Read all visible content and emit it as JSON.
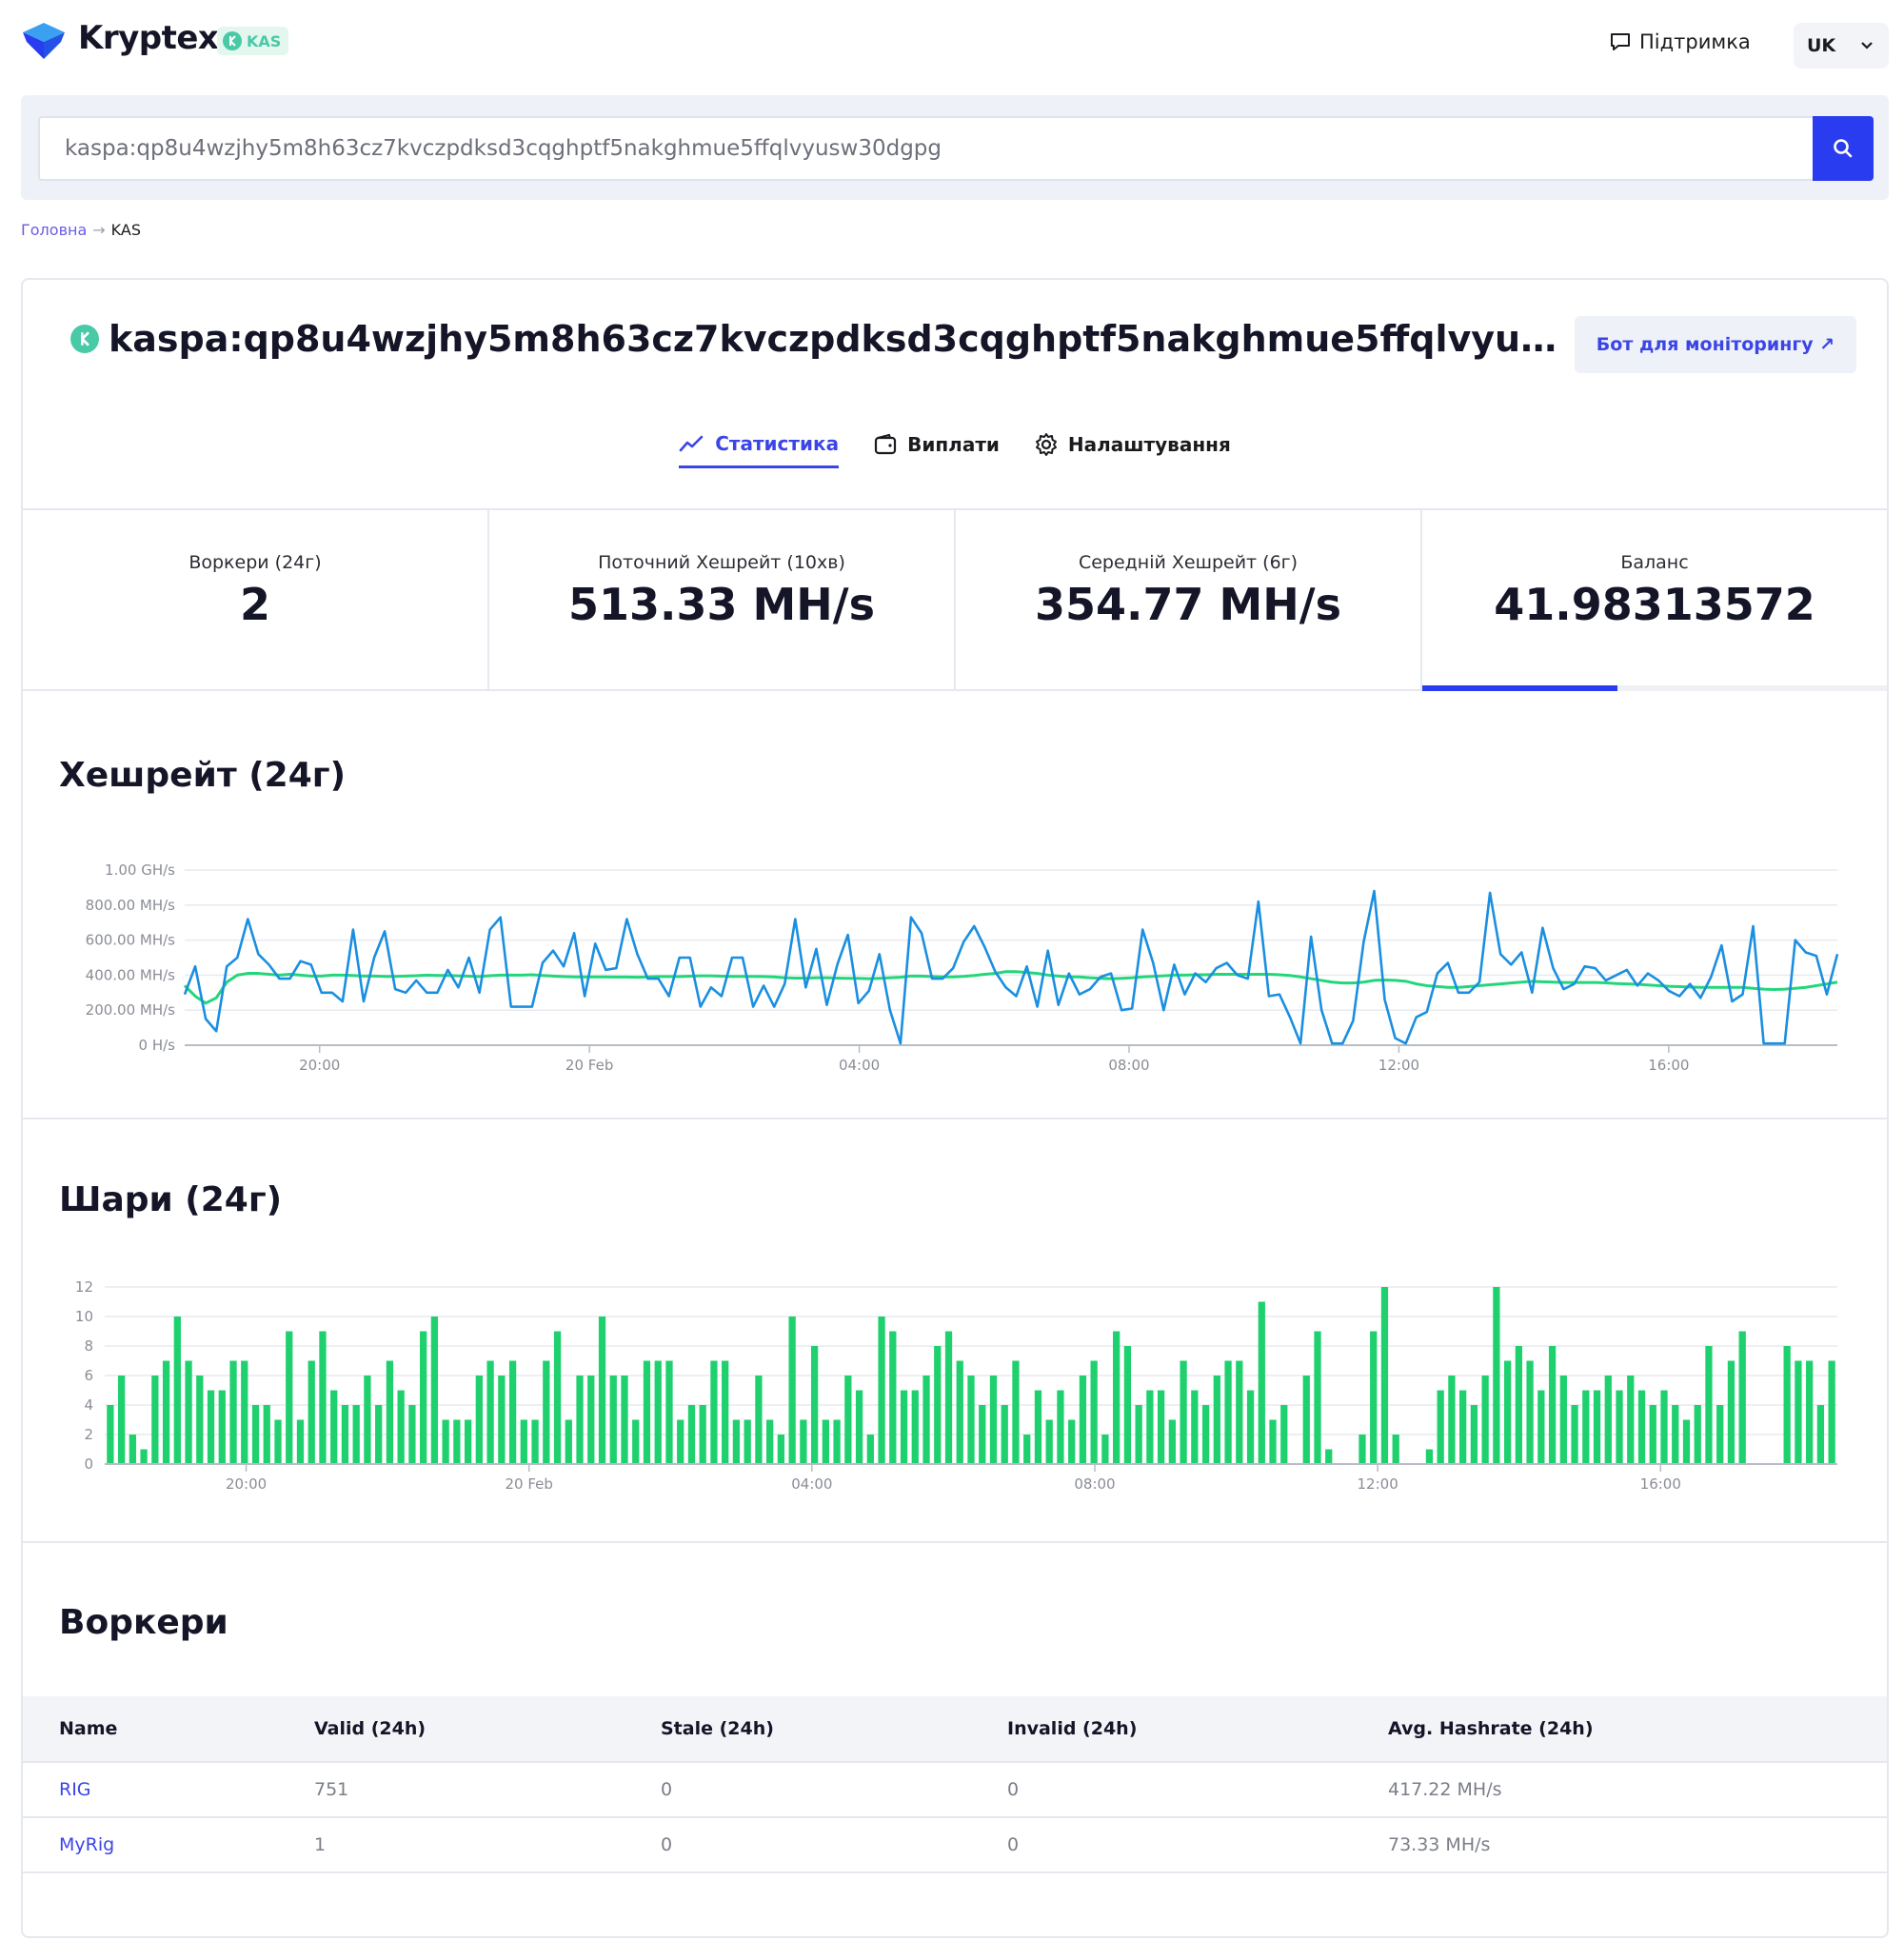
{
  "header": {
    "brand": "Kryptex",
    "coin_badge": "KAS",
    "support_label": "Підтримка",
    "language": "UK"
  },
  "search": {
    "value": "kaspa:qp8u4wzjhy5m8h63cz7kvczpdksd3cqghptf5nakghmue5ffqlvyusw30dgpg"
  },
  "breadcrumb": {
    "home": "Головна",
    "current": "KAS"
  },
  "account": {
    "address": "kaspa:qp8u4wzjhy5m8h63cz7kvczpdksd3cqghptf5nakghmue5ffqlvyusw30dgpg",
    "bot_button": "Бот для моніторингу ↗"
  },
  "tabs": [
    {
      "label": "Статистика",
      "icon": "chart-line-icon",
      "active": true
    },
    {
      "label": "Виплати",
      "icon": "wallet-icon",
      "active": false
    },
    {
      "label": "Налаштування",
      "icon": "gear-icon",
      "active": false
    }
  ],
  "stats": [
    {
      "label": "Воркери (24г)",
      "value": "2"
    },
    {
      "label": "Поточний Хешрейт (10хв)",
      "value": "513.33 MH/s"
    },
    {
      "label": "Середній Хешрейт (6г)",
      "value": "354.77 MH/s"
    },
    {
      "label": "Баланс",
      "value": "41.98313572",
      "progress_fraction": 0.42
    }
  ],
  "colors": {
    "accent": "#2a3cf0",
    "link": "#3b45e6",
    "hashrate_line": "#1a8fe0",
    "average_line": "#22d67a",
    "shares_bar": "#1fd16e",
    "coin": "#49c9a6"
  },
  "hashrate_section": {
    "title": "Хешрейт (24г)"
  },
  "shares_section": {
    "title": "Шари (24г)"
  },
  "chart_data": [
    {
      "type": "line",
      "title": "Хешрейт (24г)",
      "y_tick_labels": [
        "0 H/s",
        "200.00 MH/s",
        "400.00 MH/s",
        "600.00 MH/s",
        "800.00 MH/s",
        "1.00 GH/s"
      ],
      "ylim": [
        0,
        1000
      ],
      "y_unit": "MH/s",
      "x_tick_labels": [
        "20:00",
        "20 Feb",
        "04:00",
        "08:00",
        "12:00",
        "16:00"
      ],
      "x_tick_hours": [
        20,
        24,
        28,
        32,
        36,
        40
      ],
      "x_range_hours": [
        18,
        42.5
      ],
      "grid": true,
      "series": [
        {
          "values": [
            290,
            450,
            150,
            80,
            450,
            500,
            720,
            520,
            460,
            380,
            380,
            480,
            460,
            300,
            300,
            250,
            660,
            250,
            500,
            650,
            320,
            300,
            370,
            300,
            300,
            430,
            330,
            500,
            300,
            660,
            730,
            220,
            220,
            220,
            470,
            540,
            450,
            640,
            280,
            580,
            430,
            440,
            720,
            520,
            380,
            380,
            280,
            500,
            500,
            220,
            330,
            280,
            500,
            500,
            220,
            340,
            220,
            350,
            720,
            330,
            550,
            230,
            460,
            630,
            240,
            310,
            520,
            200,
            10,
            730,
            640,
            380,
            380,
            440,
            590,
            680,
            560,
            420,
            330,
            280,
            450,
            220,
            540,
            230,
            410,
            290,
            320,
            390,
            410,
            200,
            210,
            660,
            470,
            200,
            460,
            290,
            410,
            360,
            440,
            470,
            400,
            380,
            820,
            280,
            290,
            160,
            10,
            620,
            200,
            10,
            10,
            140,
            590,
            880,
            260,
            40,
            10,
            160,
            190,
            410,
            470,
            300,
            300,
            360,
            870,
            520,
            460,
            530,
            300,
            670,
            440,
            320,
            350,
            450,
            440,
            370,
            400,
            430,
            340,
            410,
            370,
            310,
            280,
            350,
            270,
            390,
            570,
            250,
            290,
            680,
            10,
            10,
            10,
            600,
            530,
            510,
            290,
            520
          ],
          "average_values": [
            340,
            280,
            240,
            270,
            360,
            400,
            410,
            410,
            405,
            400,
            405,
            400,
            395,
            395,
            400,
            400,
            398,
            395,
            395,
            393,
            393,
            395,
            397,
            400,
            398,
            398,
            396,
            394,
            392,
            397,
            400,
            400,
            400,
            402,
            398,
            395,
            392,
            390,
            390,
            390,
            390,
            389,
            389,
            388,
            390,
            392,
            392,
            392,
            394,
            396,
            396,
            394,
            393,
            393,
            393,
            392,
            390,
            385,
            383,
            383,
            385,
            385,
            383,
            382,
            382,
            380,
            382,
            385,
            388,
            395,
            395,
            392,
            390,
            390,
            393,
            398,
            405,
            410,
            420,
            420,
            415,
            410,
            400,
            395,
            390,
            390,
            385,
            382,
            380,
            382,
            385,
            390,
            393,
            396,
            400,
            400,
            402,
            402,
            405,
            405,
            405,
            405,
            405,
            405,
            402,
            398,
            390,
            380,
            370,
            360,
            355,
            355,
            360,
            370,
            372,
            370,
            365,
            350,
            340,
            335,
            330,
            330,
            335,
            340,
            345,
            350,
            355,
            360,
            365,
            362,
            360,
            358,
            358,
            358,
            358,
            356,
            352,
            350,
            348,
            344,
            340,
            336,
            334,
            332,
            330,
            330,
            330,
            330,
            330,
            325,
            320,
            318,
            320,
            325,
            330,
            340,
            350,
            360
          ]
        }
      ]
    },
    {
      "type": "bar",
      "title": "Шари (24г)",
      "ylim": [
        0,
        12
      ],
      "y_tick_labels": [
        "0",
        "2",
        "4",
        "6",
        "8",
        "10",
        "12"
      ],
      "x_tick_labels": [
        "20:00",
        "20 Feb",
        "04:00",
        "08:00",
        "12:00",
        "16:00"
      ],
      "x_tick_hours": [
        20,
        24,
        28,
        32,
        36,
        40
      ],
      "x_range_hours": [
        18,
        42.5
      ],
      "grid": true,
      "series": [
        {
          "values": [
            4,
            6,
            2,
            1,
            6,
            7,
            10,
            7,
            6,
            5,
            5,
            7,
            7,
            4,
            4,
            3,
            9,
            3,
            7,
            9,
            5,
            4,
            4,
            6,
            4,
            7,
            5,
            4,
            9,
            10,
            3,
            3,
            3,
            6,
            7,
            6,
            7,
            3,
            3,
            7,
            9,
            3,
            6,
            6,
            10,
            6,
            6,
            3,
            7,
            7,
            7,
            3,
            4,
            4,
            7,
            7,
            3,
            3,
            6,
            3,
            2,
            10,
            3,
            8,
            3,
            3,
            6,
            5,
            2,
            10,
            9,
            5,
            5,
            6,
            8,
            9,
            7,
            6,
            4,
            6,
            4,
            7,
            2,
            5,
            3,
            5,
            3,
            6,
            7,
            2,
            9,
            8,
            4,
            5,
            5,
            3,
            7,
            5,
            4,
            6,
            7,
            7,
            5,
            11,
            3,
            4,
            0,
            6,
            9,
            1,
            0,
            0,
            2,
            9,
            12,
            2,
            0,
            0,
            1,
            5,
            6,
            5,
            4,
            6,
            12,
            7,
            8,
            7,
            5,
            8,
            6,
            4,
            5,
            5,
            6,
            5,
            6,
            5,
            4,
            5,
            4,
            3,
            4,
            8,
            4,
            7,
            9,
            0,
            0,
            0,
            8,
            7,
            7,
            4,
            7
          ]
        }
      ]
    }
  ],
  "workers_section": {
    "title": "Воркери"
  },
  "workers_table": {
    "headers": [
      "Name",
      "Valid (24h)",
      "Stale (24h)",
      "Invalid (24h)",
      "Avg. Hashrate (24h)"
    ],
    "rows": [
      {
        "name": "RIG",
        "valid": "751",
        "stale": "0",
        "invalid": "0",
        "avg": "417.22 MH/s"
      },
      {
        "name": "MyRig",
        "valid": "1",
        "stale": "0",
        "invalid": "0",
        "avg": "73.33 MH/s"
      }
    ]
  }
}
